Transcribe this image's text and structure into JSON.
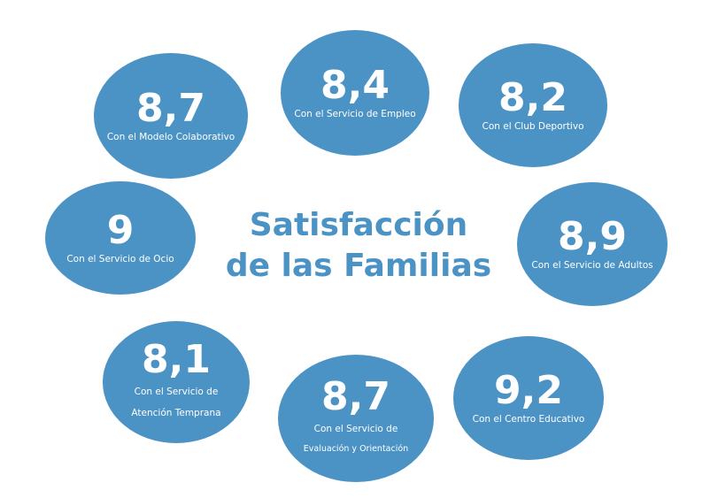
{
  "theme": {
    "bubble_color": "#4b92c5",
    "title_color": "#4b92c5"
  },
  "title": {
    "line1": "Satisfacción",
    "line2": "de las Familias"
  },
  "bubbles": {
    "modelo_colaborativo": {
      "score": "8,7",
      "caption": "Con el Modelo Colaborativo"
    },
    "servicio_empleo": {
      "score": "8,4",
      "caption": "Con el Servicio de Empleo"
    },
    "club_deportivo": {
      "score": "8,2",
      "caption": "Con el Club Deportivo"
    },
    "servicio_ocio": {
      "score": "9",
      "caption": "Con el Servicio de Ocio"
    },
    "servicio_adultos": {
      "score": "8,9",
      "caption": "Con el Servicio de Adultos"
    },
    "atencion_temprana": {
      "score": "8,1",
      "caption_line1": "Con el Servicio de",
      "caption_line2": "Atención Temprana"
    },
    "evaluacion_orientacion": {
      "score": "8,7",
      "caption_line1": "Con el Servicio de",
      "caption_line2": "Evaluación y Orientación"
    },
    "centro_educativo": {
      "score": "9,2",
      "caption": "Con el Centro Educativo"
    }
  }
}
